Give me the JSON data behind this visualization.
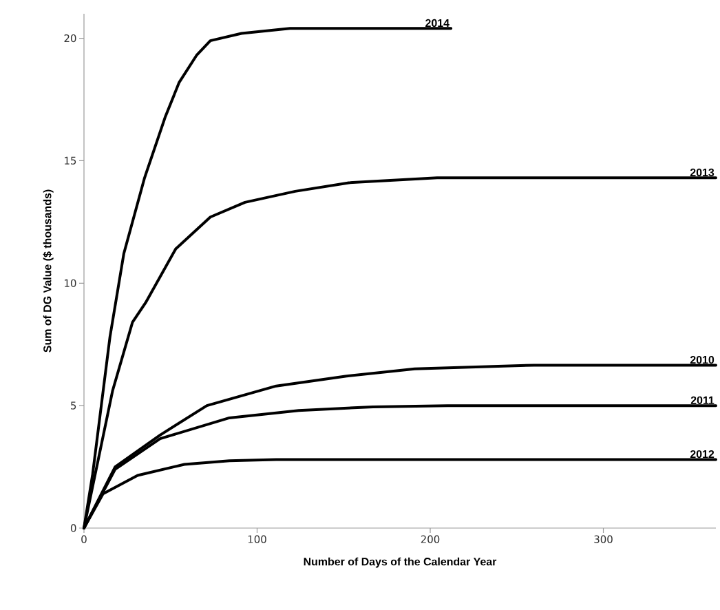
{
  "chart_data": {
    "type": "line",
    "xlabel": "Number of Days of the Calendar  Year",
    "ylabel": "Sum of DG Value ($ thousands)",
    "xlim": [
      0,
      365
    ],
    "ylim": [
      0,
      21
    ],
    "xticks": [
      0,
      100,
      200,
      300
    ],
    "yticks": [
      0,
      5,
      10,
      15,
      20
    ],
    "grid": false,
    "legend": false,
    "marker": "none",
    "line_style": "solid",
    "series": [
      {
        "name": "2014",
        "color": "#000000",
        "x": [
          0,
          5,
          15,
          23,
          35,
          47,
          55,
          65,
          73,
          91,
          119,
          212
        ],
        "values": [
          0,
          2.2,
          7.8,
          11.2,
          14.3,
          16.8,
          18.2,
          19.3,
          19.9,
          20.2,
          20.4,
          20.4
        ]
      },
      {
        "name": "2013",
        "color": "#000000",
        "x": [
          0,
          16.5,
          28,
          35.6,
          53,
          73,
          93,
          122,
          153,
          204,
          365
        ],
        "values": [
          0,
          5.6,
          8.4,
          9.2,
          11.4,
          12.7,
          13.3,
          13.75,
          14.1,
          14.3,
          14.3
        ]
      },
      {
        "name": "2010",
        "color": "#000000",
        "x": [
          0,
          18,
          44,
          71,
          111,
          151,
          191,
          260,
          365
        ],
        "values": [
          0,
          2.5,
          3.8,
          5.0,
          5.8,
          6.2,
          6.5,
          6.65,
          6.65
        ]
      },
      {
        "name": "2011",
        "color": "#000000",
        "x": [
          0,
          18,
          44,
          84,
          124,
          167,
          210,
          365
        ],
        "values": [
          0,
          2.4,
          3.65,
          4.5,
          4.8,
          4.95,
          5.0,
          5.0
        ]
      },
      {
        "name": "2012",
        "color": "#000000",
        "x": [
          0,
          11,
          31,
          58,
          84,
          111,
          365
        ],
        "values": [
          0,
          1.4,
          2.15,
          2.6,
          2.75,
          2.8,
          2.8
        ]
      }
    ]
  }
}
